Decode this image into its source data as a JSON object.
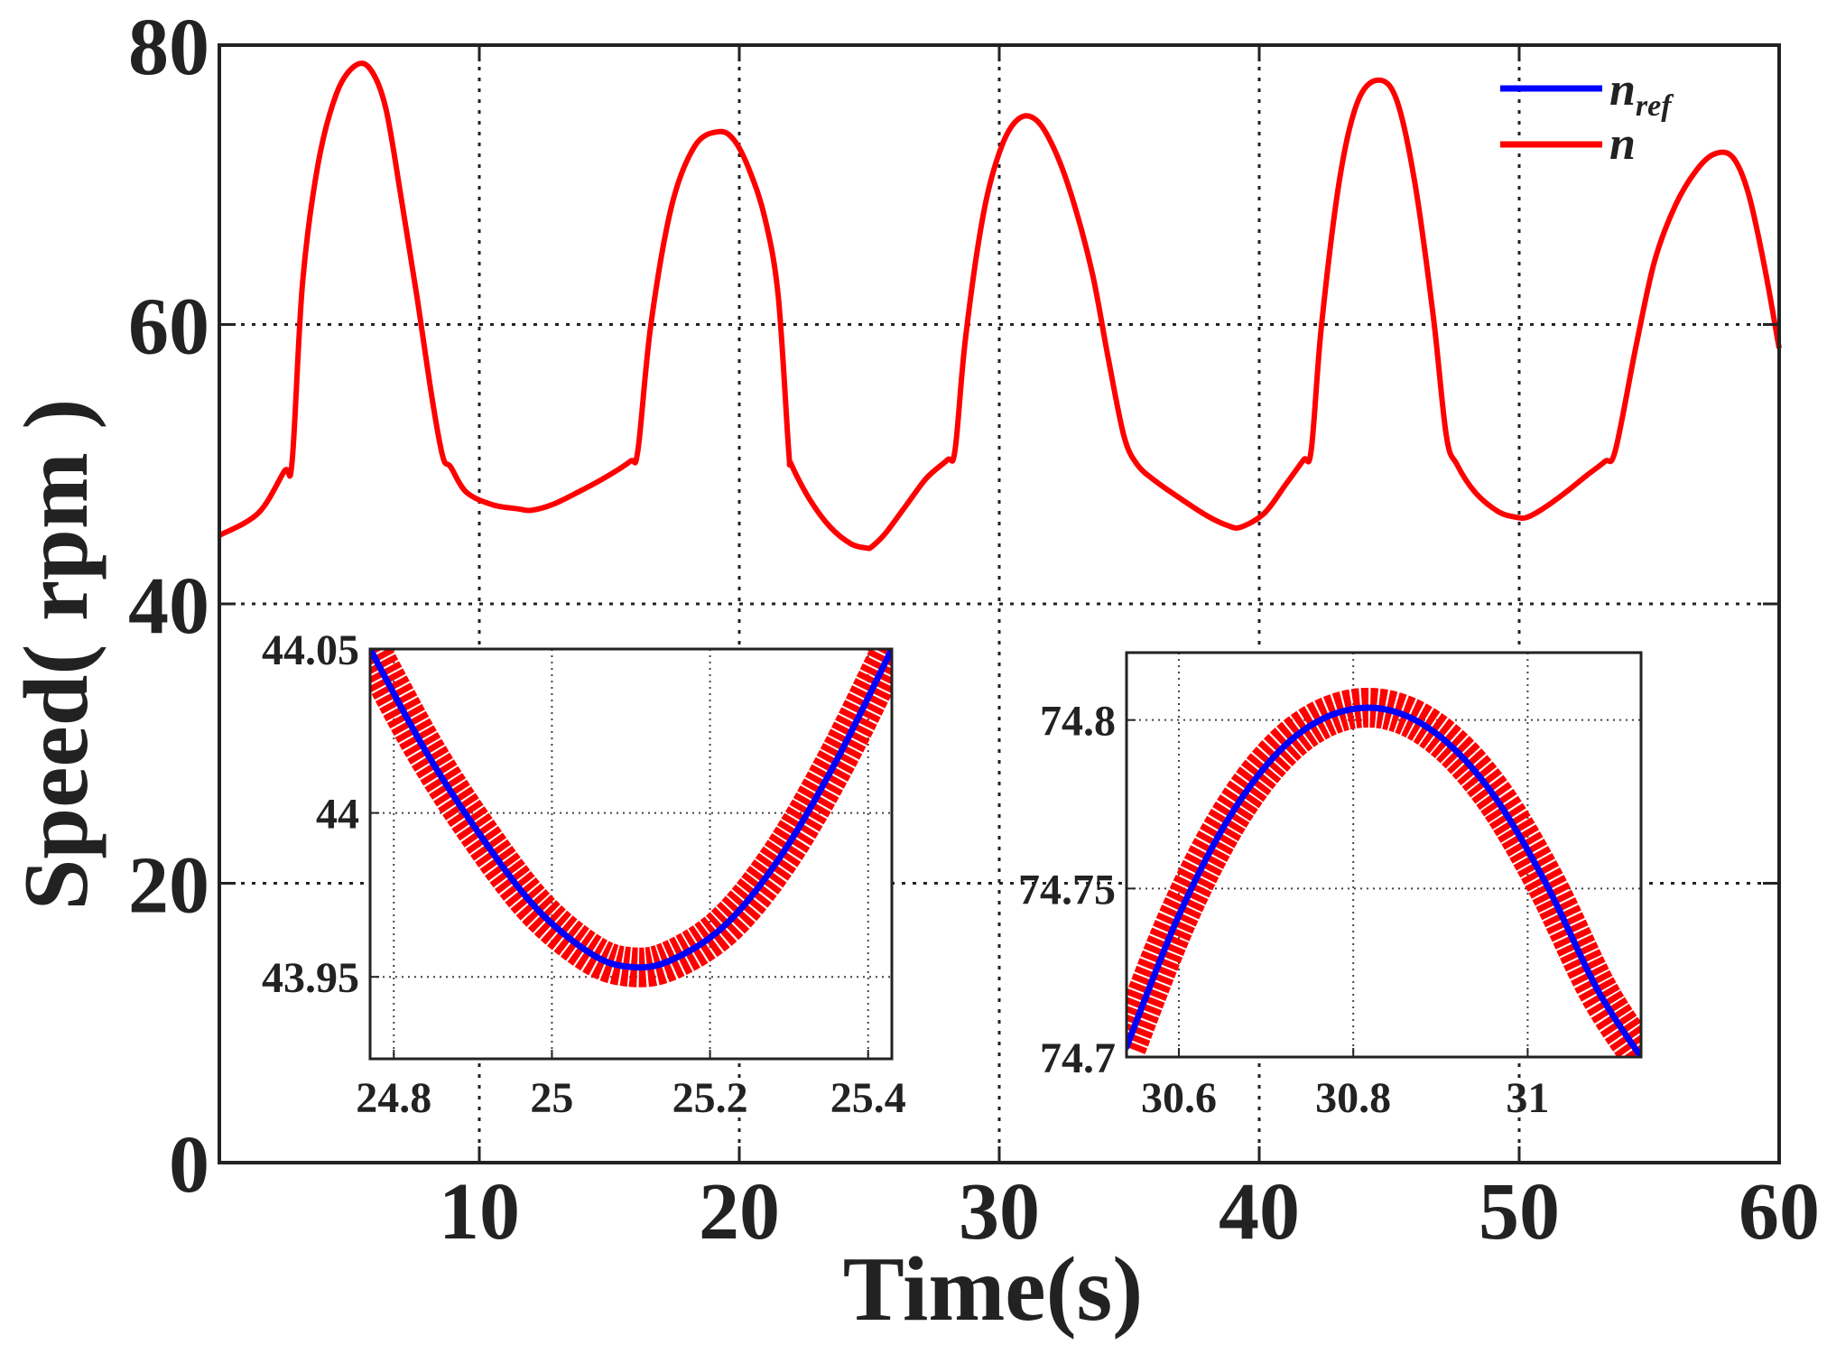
{
  "chart_data": [
    {
      "type": "line",
      "title": "",
      "xlabel": "Time(s)",
      "ylabel": "Speed( rpm )",
      "xlim": [
        0,
        60
      ],
      "ylim": [
        0,
        80
      ],
      "xticks": [
        10,
        20,
        30,
        40,
        50,
        60
      ],
      "yticks": [
        0,
        20,
        40,
        60,
        80
      ],
      "xtick_labels": [
        "10",
        "20",
        "30",
        "40",
        "50",
        "60"
      ],
      "ytick_labels": [
        "0",
        "20",
        "40",
        "60",
        "80"
      ],
      "grid": true,
      "legend_position": "top-right",
      "legend": [
        {
          "name": "n",
          "subscript": "ref",
          "color": "#0000ff"
        },
        {
          "name": "n",
          "subscript": "",
          "color": "#ff0000"
        }
      ],
      "series": [
        {
          "name": "n",
          "color": "#ff0000",
          "x": [
            0,
            1.5,
            2.5,
            2.8,
            3.2,
            3.8,
            4.5,
            5.2,
            5.8,
            6.4,
            7.0,
            7.6,
            8.2,
            8.6,
            8.9,
            9.5,
            10.5,
            11.5,
            12.0,
            12.8,
            13.8,
            14.8,
            15.8,
            16.1,
            16.6,
            17.4,
            18.3,
            19.2,
            19.8,
            20.4,
            21.0,
            21.5,
            21.9,
            22.0,
            22.7,
            23.5,
            24.3,
            24.9,
            25.1,
            25.6,
            26.4,
            27.2,
            28.0,
            28.3,
            28.7,
            29.4,
            30.1,
            30.8,
            31.5,
            32.2,
            32.9,
            33.6,
            34.2,
            34.8,
            35.3,
            36.0,
            37.0,
            38.0,
            38.8,
            39.3,
            40.2,
            41.0,
            41.7,
            42.0,
            42.4,
            43.1,
            43.8,
            44.6,
            45.3,
            46.0,
            46.7,
            47.2,
            47.6,
            48.3,
            49.2,
            49.9,
            50.3,
            50.9,
            51.8,
            52.6,
            53.3,
            53.7,
            54.5,
            55.2,
            56.0,
            56.8,
            57.5,
            58.2,
            58.8,
            59.4,
            60.0
          ],
          "values": [
            44.9,
            46.5,
            49.5,
            50.2,
            63.0,
            71.5,
            76.5,
            78.5,
            78.3,
            75.5,
            69.0,
            62.0,
            54.5,
            50.5,
            49.8,
            48.0,
            47.1,
            46.8,
            46.7,
            47.1,
            48.0,
            49.0,
            50.2,
            51.0,
            60.0,
            68.5,
            72.8,
            73.8,
            73.2,
            71.0,
            67.5,
            62.0,
            51.0,
            50.0,
            47.5,
            45.5,
            44.3,
            44.0,
            44.1,
            45.0,
            47.0,
            49.0,
            50.3,
            51.0,
            59.0,
            68.0,
            72.8,
            74.8,
            74.5,
            72.2,
            68.5,
            63.5,
            57.5,
            52.0,
            50.0,
            48.8,
            47.5,
            46.3,
            45.6,
            45.5,
            46.5,
            48.5,
            50.3,
            51.0,
            60.0,
            70.5,
            76.0,
            77.5,
            76.0,
            70.0,
            60.5,
            52.0,
            50.0,
            48.0,
            46.6,
            46.2,
            46.2,
            46.8,
            48.0,
            49.2,
            50.2,
            51.0,
            58.5,
            64.5,
            68.5,
            71.0,
            72.2,
            72.0,
            69.5,
            64.5,
            58.3
          ]
        }
      ]
    },
    {
      "type": "line",
      "title": "",
      "xlabel": "",
      "ylabel": "",
      "xlim": [
        24.77,
        25.43
      ],
      "ylim": [
        43.925,
        44.05
      ],
      "xticks": [
        24.8,
        25,
        25.2,
        25.4
      ],
      "yticks": [
        43.95,
        44,
        44.05
      ],
      "xtick_labels": [
        "24.8",
        "25",
        "25.2",
        "25.4"
      ],
      "ytick_labels": [
        "43.95",
        "44",
        "44.05"
      ],
      "grid": true,
      "series": [
        {
          "name": "n_ref",
          "color": "#0000ff",
          "x": [
            24.77,
            24.84,
            24.91,
            24.98,
            25.05,
            25.1,
            25.15,
            25.22,
            25.29,
            25.36,
            25.43
          ],
          "values": [
            44.05,
            44.019,
            43.993,
            43.971,
            43.957,
            43.953,
            43.955,
            43.966,
            43.987,
            44.016,
            44.05
          ]
        },
        {
          "name": "n",
          "color": "#ff0000",
          "x": [
            24.77,
            24.84,
            24.91,
            24.98,
            25.05,
            25.1,
            25.15,
            25.22,
            25.29,
            25.36,
            25.43
          ],
          "values": [
            44.05,
            44.019,
            43.993,
            43.971,
            43.957,
            43.953,
            43.955,
            43.966,
            43.987,
            44.016,
            44.05
          ]
        }
      ]
    },
    {
      "type": "line",
      "title": "",
      "xlabel": "",
      "ylabel": "",
      "xlim": [
        30.54,
        31.13
      ],
      "ylim": [
        74.7,
        74.82
      ],
      "xticks": [
        30.6,
        30.8,
        31
      ],
      "yticks": [
        74.7,
        74.75,
        74.8
      ],
      "xtick_labels": [
        "30.6",
        "30.8",
        "31"
      ],
      "ytick_labels": [
        "74.7",
        "74.75",
        "74.8"
      ],
      "grid": true,
      "series": [
        {
          "name": "n_ref",
          "color": "#0000ff",
          "x": [
            30.54,
            30.6,
            30.66,
            30.72,
            30.78,
            30.84,
            30.9,
            30.96,
            31.02,
            31.08,
            31.13
          ],
          "values": [
            74.703,
            74.742,
            74.772,
            74.792,
            74.802,
            74.803,
            74.795,
            74.778,
            74.752,
            74.72,
            74.7
          ]
        },
        {
          "name": "n",
          "color": "#ff0000",
          "x": [
            30.54,
            30.6,
            30.66,
            30.72,
            30.78,
            30.84,
            30.9,
            30.96,
            31.02,
            31.08,
            31.13
          ],
          "values": [
            74.703,
            74.742,
            74.772,
            74.792,
            74.802,
            74.803,
            74.795,
            74.778,
            74.752,
            74.72,
            74.7
          ]
        }
      ]
    }
  ]
}
